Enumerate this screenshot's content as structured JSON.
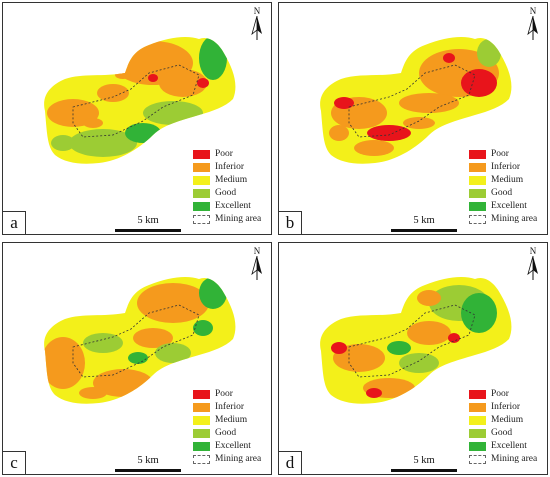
{
  "north_label": "N",
  "scale_label": "5 km",
  "legend": [
    {
      "label": "Poor",
      "color": "#e8141b"
    },
    {
      "label": "Inferior",
      "color": "#f59a1d"
    },
    {
      "label": "Medium",
      "color": "#f3f01a"
    },
    {
      "label": "Good",
      "color": "#9ccc34"
    },
    {
      "label": "Excellent",
      "color": "#31b337"
    },
    {
      "label": "Mining area",
      "color": "#ffffff",
      "style": "dashed"
    }
  ],
  "panels": [
    {
      "id": "a",
      "label": "a"
    },
    {
      "id": "b",
      "label": "b"
    },
    {
      "id": "c",
      "label": "c"
    },
    {
      "id": "d",
      "label": "d"
    }
  ]
}
